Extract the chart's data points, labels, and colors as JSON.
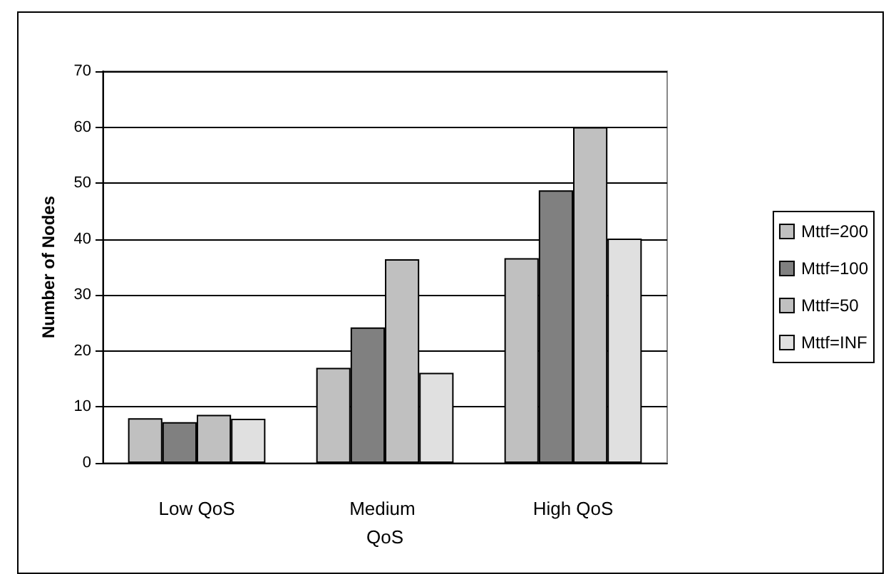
{
  "chart_data": {
    "type": "bar",
    "ylabel": "Number of Nodes",
    "categories": [
      "Low QoS",
      "Medium QoS",
      "High QoS"
    ],
    "series": [
      {
        "name": "Mttf=200",
        "color": "#c0c0c0",
        "values": [
          8.0,
          17.0,
          36.6
        ]
      },
      {
        "name": "Mttf=100",
        "color": "#808080",
        "values": [
          7.3,
          24.2,
          48.7
        ]
      },
      {
        "name": "Mttf=50",
        "color": "#c0c0c0",
        "values": [
          8.6,
          36.4,
          60
        ]
      },
      {
        "name": "Mttf=INF",
        "color": "#e0e0e0",
        "values": [
          7.9,
          16.1,
          40.1
        ]
      }
    ],
    "ylim": [
      0,
      70
    ],
    "yticks": [
      0,
      10,
      20,
      30,
      40,
      50,
      60,
      70
    ],
    "grid": "y",
    "legend": "right"
  }
}
